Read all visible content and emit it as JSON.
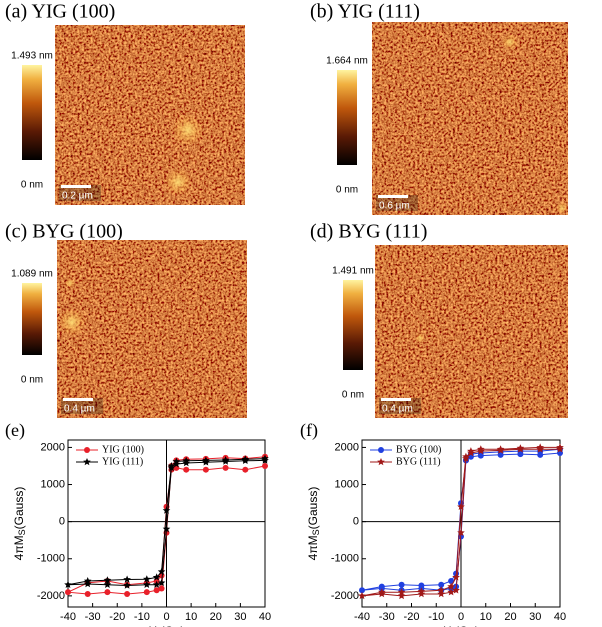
{
  "panels": [
    {
      "label": "(a) YIG (100)",
      "max": "1.493 nm",
      "min": "0 nm",
      "scale": "0.2 µm"
    },
    {
      "label": "(b) YIG (111)",
      "max": "1.664 nm",
      "min": "0 nm",
      "scale": "0.6 µm"
    },
    {
      "label": "(c) BYG (100)",
      "max": "1.089 nm",
      "min": "0 nm",
      "scale": "0.4 µm"
    },
    {
      "label": "(d) BYG (111)",
      "max": "1.491 nm",
      "min": "0 nm",
      "scale": "0.4 µm"
    }
  ],
  "chart_data": [
    {
      "type": "line",
      "title": "(e)",
      "xlabel": "H (Oe)",
      "ylabel": {
        "main": "4πM",
        "sub": "S",
        "unit": "(Gauss)"
      },
      "xlim": [
        -40,
        40
      ],
      "ylim": [
        -2300,
        2200
      ],
      "xticks": [
        -40,
        -30,
        -20,
        -10,
        0,
        10,
        20,
        30,
        40
      ],
      "yticks": [
        -2000,
        -1000,
        0,
        1000,
        2000
      ],
      "x": [
        40,
        32,
        24,
        16,
        8,
        4,
        2,
        0,
        -2,
        -4,
        -8,
        -16,
        -24,
        -32,
        -40,
        -32,
        -24,
        -16,
        -8,
        -4,
        -2,
        0,
        2,
        4,
        8,
        16,
        24,
        32,
        40
      ],
      "series": [
        {
          "name": "YIG (100)",
          "color": "#e8202a",
          "marker": "circle",
          "values": [
            1750,
            1700,
            1720,
            1690,
            1680,
            1650,
            1500,
            -300,
            -1800,
            -1850,
            -1900,
            -1950,
            -1900,
            -1950,
            -1900,
            -1650,
            -1600,
            -1700,
            -1650,
            -1600,
            -1450,
            400,
            1400,
            1450,
            1400,
            1400,
            1450,
            1400,
            1500
          ]
        },
        {
          "name": "YIG (111)",
          "color": "#000000",
          "marker": "star",
          "values": [
            1700,
            1680,
            1660,
            1650,
            1640,
            1620,
            1450,
            -200,
            -1650,
            -1700,
            -1700,
            -1720,
            -1700,
            -1680,
            -1700,
            -1600,
            -1580,
            -1560,
            -1550,
            -1500,
            -1350,
            300,
            1500,
            1550,
            1580,
            1600,
            1620,
            1640,
            1650
          ]
        }
      ]
    },
    {
      "type": "line",
      "title": "(f)",
      "xlabel": "H (Oe)",
      "ylabel": {
        "main": "4πM",
        "sub": "S",
        "unit": "(Gauss)"
      },
      "xlim": [
        -40,
        40
      ],
      "ylim": [
        -2300,
        2200
      ],
      "xticks": [
        -40,
        -30,
        -20,
        -10,
        0,
        10,
        20,
        30,
        40
      ],
      "yticks": [
        -2000,
        -1000,
        0,
        1000,
        2000
      ],
      "x": [
        40,
        32,
        24,
        16,
        8,
        4,
        2,
        0,
        -2,
        -4,
        -8,
        -16,
        -24,
        -32,
        -40,
        -32,
        -24,
        -16,
        -8,
        -4,
        -2,
        0,
        2,
        4,
        8,
        16,
        24,
        32,
        40
      ],
      "series": [
        {
          "name": "BYG (100)",
          "color": "#2040e0",
          "marker": "circle",
          "values": [
            1950,
            1900,
            1900,
            1880,
            1850,
            1820,
            1650,
            -400,
            -1750,
            -1800,
            -1850,
            -1800,
            -1850,
            -1800,
            -1850,
            -1750,
            -1700,
            -1720,
            -1700,
            -1600,
            -1400,
            500,
            1650,
            1750,
            1780,
            1800,
            1820,
            1800,
            1850
          ]
        },
        {
          "name": "BYG (111)",
          "color": "#a01818",
          "marker": "star",
          "values": [
            2000,
            2000,
            1980,
            1950,
            1950,
            1900,
            1700,
            -300,
            -1850,
            -1900,
            -1950,
            -1950,
            -2000,
            -1950,
            -2000,
            -1900,
            -1900,
            -1880,
            -1850,
            -1750,
            -1500,
            400,
            1750,
            1850,
            1900,
            1920,
            1950,
            1950,
            1950
          ]
        }
      ]
    }
  ]
}
